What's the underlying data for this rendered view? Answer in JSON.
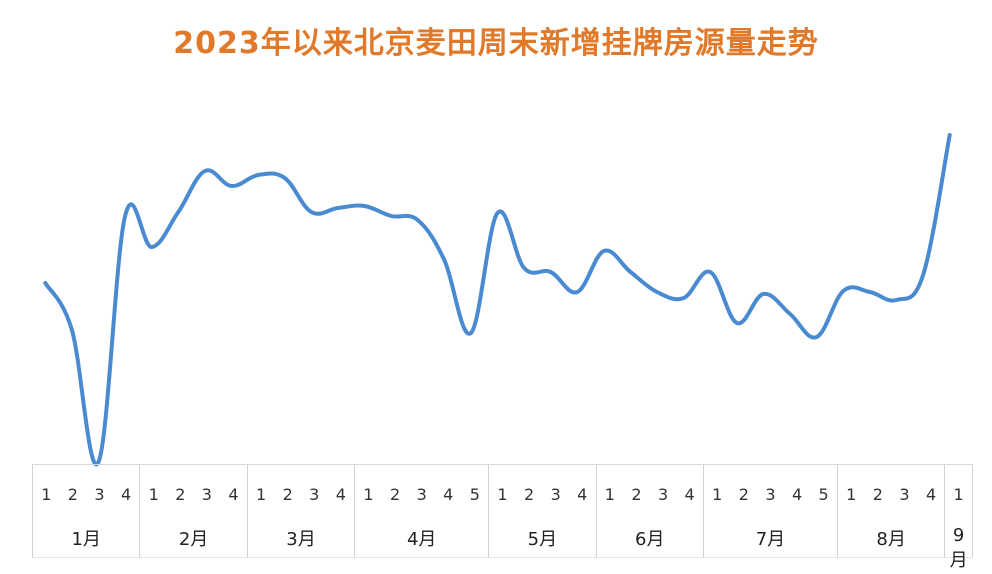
{
  "title": "2023年以来北京麦田周末新增挂牌房源量走势",
  "colors": {
    "line": "#4a8ad0",
    "title": "#e07a2a"
  },
  "months": [
    {
      "label": "1月",
      "weeks": [
        "1",
        "2",
        "3",
        "4"
      ]
    },
    {
      "label": "2月",
      "weeks": [
        "1",
        "2",
        "3",
        "4"
      ]
    },
    {
      "label": "3月",
      "weeks": [
        "1",
        "2",
        "3",
        "4"
      ]
    },
    {
      "label": "4月",
      "weeks": [
        "1",
        "2",
        "3",
        "4",
        "5"
      ]
    },
    {
      "label": "5月",
      "weeks": [
        "1",
        "2",
        "3",
        "4"
      ]
    },
    {
      "label": "6月",
      "weeks": [
        "1",
        "2",
        "3",
        "4"
      ]
    },
    {
      "label": "7月",
      "weeks": [
        "1",
        "2",
        "3",
        "4",
        "5"
      ]
    },
    {
      "label": "8月",
      "weeks": [
        "1",
        "2",
        "3",
        "4"
      ]
    },
    {
      "label": "9月",
      "weeks": [
        "1"
      ]
    }
  ],
  "chart_data": {
    "type": "line",
    "title": "2023年以来北京麦田周末新增挂牌房源量走势",
    "xlabel": "",
    "ylabel": "",
    "y_axis_shown": false,
    "grid": false,
    "legend": null,
    "note": "No y-axis in image; values are relative heights (estimated from pixels, 0 = x-axis baseline).",
    "categories": [
      "1月-1",
      "1月-2",
      "1月-3",
      "1月-4",
      "2月-1",
      "2月-2",
      "2月-3",
      "2月-4",
      "3月-1",
      "3月-2",
      "3月-3",
      "3月-4",
      "4月-1",
      "4月-2",
      "4月-3",
      "4月-4",
      "4月-5",
      "5月-1",
      "5月-2",
      "5月-3",
      "5月-4",
      "6月-1",
      "6月-2",
      "6月-3",
      "6月-4",
      "7月-1",
      "7月-2",
      "7月-3",
      "7月-4",
      "7月-5",
      "8月-1",
      "8月-2",
      "8月-3",
      "8月-4",
      "9月-1"
    ],
    "series": [
      {
        "name": "周末新增挂牌房源量",
        "values": [
          192,
          145,
          13,
          259,
          228,
          263,
          304,
          289,
          300,
          297,
          263,
          267,
          269,
          259,
          255,
          215,
          142,
          262,
          207,
          203,
          183,
          224,
          203,
          183,
          177,
          203,
          152,
          181,
          161,
          138,
          184,
          183,
          175,
          200,
          340
        ]
      }
    ]
  }
}
